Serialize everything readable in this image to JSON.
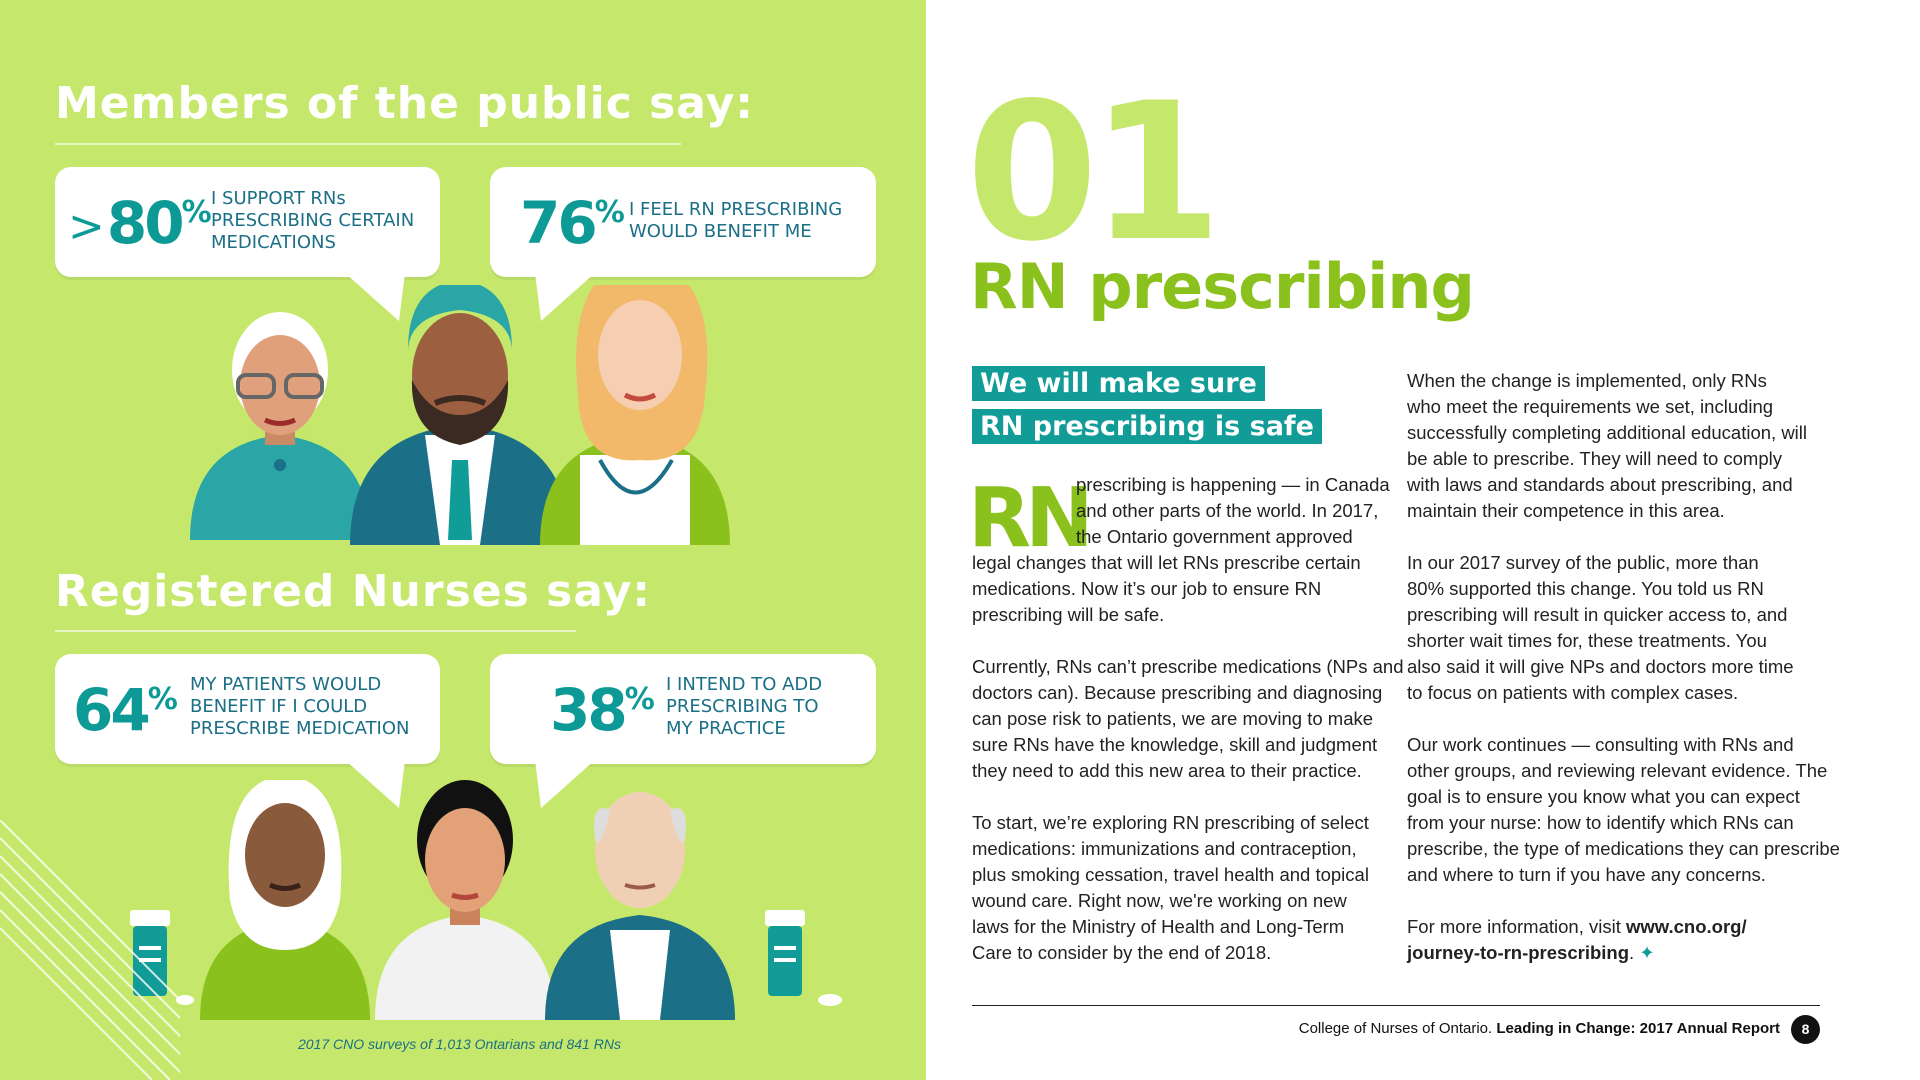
{
  "public_section": {
    "heading": "Members of the public say:",
    "stats": [
      {
        "prefix": ">",
        "value": "80",
        "unit": "%",
        "lines": [
          "I SUPPORT RNs",
          "PRESCRIBING CERTAIN",
          "MEDICATIONS"
        ]
      },
      {
        "prefix": "",
        "value": "76",
        "unit": "%",
        "lines": [
          "I FEEL RN PRESCRIBING",
          "WOULD BENEFIT ME"
        ]
      }
    ]
  },
  "nurses_section": {
    "heading": "Registered Nurses say:",
    "stats": [
      {
        "prefix": "",
        "value": "64",
        "unit": "%",
        "lines": [
          "MY PATIENTS WOULD",
          "BENEFIT IF I COULD",
          "PRESCRIBE MEDICATION"
        ]
      },
      {
        "prefix": "",
        "value": "38",
        "unit": "%",
        "lines": [
          "I INTEND TO ADD",
          "PRESCRIBING TO",
          "MY PRACTICE"
        ]
      }
    ]
  },
  "caption": "2017 CNO surveys of 1,013 Ontarians and 841 RNs",
  "colors": {
    "lime": "#c5e86c",
    "green": "#8ac11d",
    "teal": "#129c98",
    "navy": "#1b6f86"
  },
  "article": {
    "number": "01",
    "title": "RN prescribing",
    "highlight_lines": [
      "We will make sure",
      "RN prescribing is safe"
    ],
    "dropcap": "RN",
    "col1": {
      "p1_wrap": [
        "prescribing is happening — in Canada",
        "and other parts of the world. In 2017,",
        "the Ontario government approved"
      ],
      "p1_rest": [
        "legal changes that will let RNs prescribe certain",
        "medications. Now it’s our job to ensure RN",
        "prescribing will be safe."
      ],
      "p2": [
        "Currently, RNs can’t prescribe medications (NPs and",
        "doctors can). Because prescribing and diagnosing",
        "can pose risk to patients, we are moving to make",
        "sure RNs have the knowledge, skill and judgment",
        "they need to add this new area to their practice."
      ],
      "p3": [
        "To start, we’re exploring RN prescribing of select",
        "medications: immunizations and contraception,",
        "plus smoking cessation, travel health and topical",
        "wound care. Right now, we're working on new",
        "laws for the Ministry of Health and Long-Term",
        "Care to consider by the end of 2018."
      ]
    },
    "col2": {
      "p1": [
        "When the change is implemented, only RNs",
        "who meet the requirements we set, including",
        "successfully completing additional education, will",
        "be able to prescribe. They will need to comply",
        "with laws and standards about prescribing, and",
        "maintain their competence in this area."
      ],
      "p2": [
        "In our 2017 survey of the public, more than",
        "80% supported this change. You told us RN",
        "prescribing will result in quicker access to, and",
        "shorter wait times for, these treatments. You",
        "also said it will give NPs and doctors more time",
        "to focus on patients with complex cases."
      ],
      "p3": [
        "Our work continues — consulting with RNs and",
        "other groups, and reviewing relevant evidence. The",
        "goal is to ensure you know what you can expect",
        "from your nurse: how to identify which RNs can",
        "prescribe, the type of medications they can prescribe",
        "and where to turn if you have any concerns."
      ],
      "p4_intro": "For more information, visit ",
      "p4_link1": "www.cno.org/",
      "p4_link2": "journey-to-rn-prescribing",
      "p4_end": ".",
      "end_mark": "✦"
    }
  },
  "footer": {
    "org": "College of Nurses of Ontario. ",
    "report": "Leading in Change: 2017 Annual Report",
    "page": "8"
  }
}
